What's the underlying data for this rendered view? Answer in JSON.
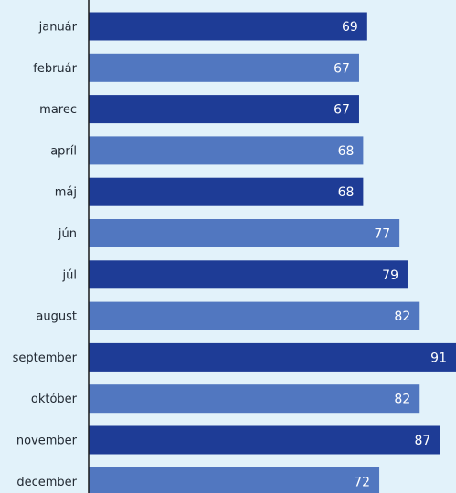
{
  "chart_data": {
    "type": "bar",
    "orientation": "horizontal",
    "title": "",
    "xlabel": "",
    "ylabel": "",
    "categories": [
      "január",
      "február",
      "marec",
      "apríl",
      "máj",
      "jún",
      "júl",
      "august",
      "september",
      "október",
      "november",
      "december"
    ],
    "values": [
      69,
      67,
      67,
      68,
      68,
      77,
      79,
      82,
      91,
      82,
      87,
      72
    ],
    "value_labels": [
      "69",
      "67",
      "67",
      "68",
      "68",
      "77",
      "79",
      "82",
      "91",
      "82",
      "87",
      "72"
    ],
    "xlim": [
      0,
      91
    ],
    "grid": false,
    "legend": "none",
    "colors": {
      "dark": "#1e3c96",
      "light": "#5177c0",
      "axis": "#1a1a1a",
      "background": "#e2f2fa"
    }
  }
}
